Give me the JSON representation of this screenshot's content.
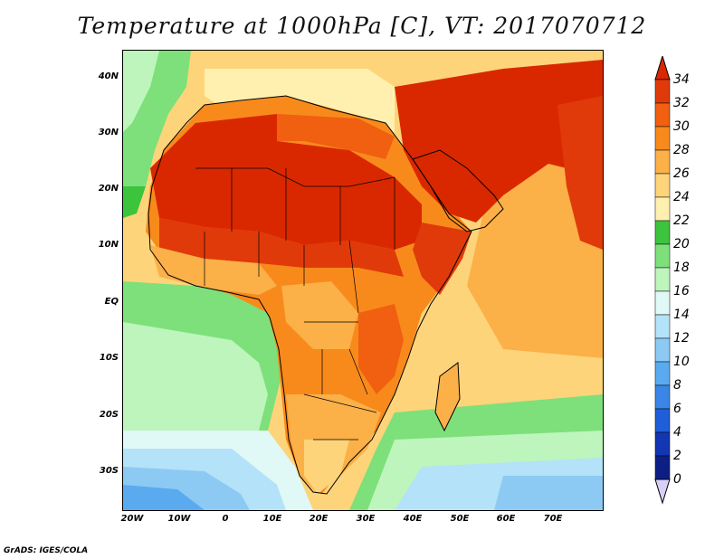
{
  "title": "Temperature at 1000hPa [C], VT: 2017070712",
  "credit": "GrADS: IGES/COLA",
  "map": {
    "lat_ticks": [
      "40N",
      "30N",
      "20N",
      "10N",
      "EQ",
      "10S",
      "20S",
      "30S"
    ],
    "lon_ticks": [
      "20W",
      "10W",
      "0",
      "10E",
      "20E",
      "30E",
      "40E",
      "50E",
      "60E",
      "70E"
    ]
  },
  "colorbar": {
    "labels": [
      "34",
      "32",
      "30",
      "28",
      "26",
      "24",
      "22",
      "20",
      "18",
      "16",
      "14",
      "12",
      "10",
      "8",
      "6",
      "4",
      "2",
      "0"
    ],
    "colors": {
      "over": "#d92800",
      "c32_34": "#e03a0a",
      "c30_32": "#f06010",
      "c28_30": "#f88a1c",
      "c26_28": "#fbb048",
      "c24_26": "#fdd47a",
      "c22_24": "#fff0b0",
      "c20_22": "#3cc43c",
      "c18_20": "#7ee07a",
      "c16_18": "#bdf5bd",
      "c14_16": "#e0f8f6",
      "c12_14": "#b4e2f8",
      "c10_12": "#8ccaf4",
      "c8_10": "#5aaaf0",
      "c6_8": "#3a86e6",
      "c4_6": "#1f5ed8",
      "c2_4": "#1236b4",
      "c0_2": "#0c1f84",
      "under": "#d8d0f8"
    }
  }
}
